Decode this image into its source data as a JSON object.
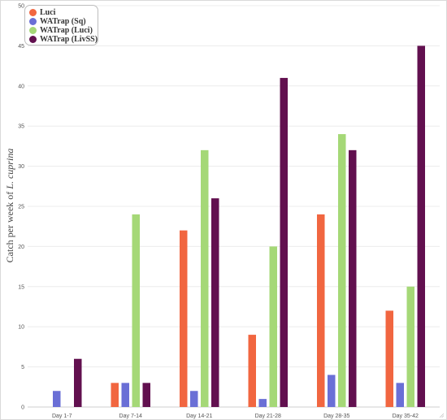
{
  "chart_data": {
    "type": "bar",
    "title": "",
    "xlabel": "",
    "ylabel": "Catch per week of ",
    "ylabel_italic": "L. cuprina",
    "ylim": [
      0,
      50
    ],
    "yticks": [
      0,
      5,
      10,
      15,
      20,
      25,
      30,
      35,
      40,
      45,
      50
    ],
    "grid": true,
    "legend_position": "top-left",
    "categories": [
      "Day 1-7",
      "Day 7-14",
      "Day 14-21",
      "Day 21-28",
      "Day 28-35",
      "Day 35-42"
    ],
    "series": [
      {
        "name": "Luci",
        "color": "#f16640",
        "values": [
          0,
          3,
          22,
          9,
          24,
          12
        ]
      },
      {
        "name": "WATrap (Sq)",
        "color": "#6a6fd6",
        "values": [
          2,
          3,
          2,
          1,
          4,
          3
        ]
      },
      {
        "name": "WATrap (Luci)",
        "color": "#a5d877",
        "values": [
          0,
          24,
          32,
          20,
          34,
          15
        ]
      },
      {
        "name": "WATrap (LivSS)",
        "color": "#62104f",
        "values": [
          6,
          3,
          26,
          41,
          32,
          45
        ]
      }
    ]
  }
}
